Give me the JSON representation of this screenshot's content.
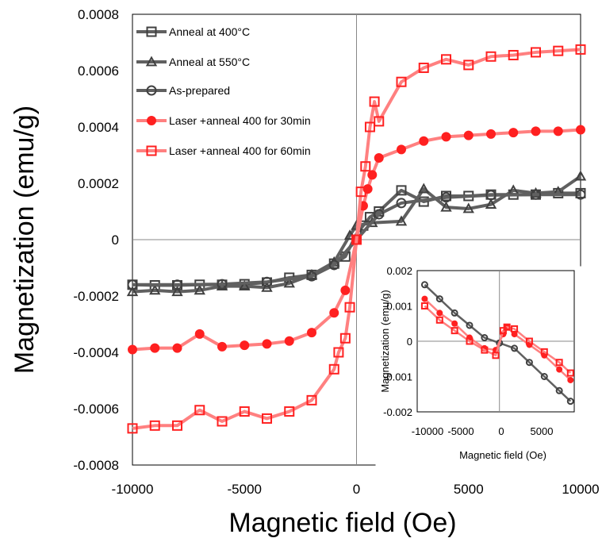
{
  "chart_data": [
    {
      "type": "line",
      "xlabel": "Magnetic field (Oe)",
      "ylabel": "Magnetization (emu/g)",
      "xlim": [
        -10000,
        10000
      ],
      "ylim": [
        -0.0008,
        0.0008
      ],
      "x_ticks": [
        "-10000",
        "-5000",
        "0",
        "5000",
        "10000"
      ],
      "y_ticks": [
        "-0.0008",
        "-0.0006",
        "-0.0004",
        "-0.0002",
        "0",
        "0.0002",
        "0.0004",
        "0.0006",
        "0.0008"
      ],
      "legend_position": "upper-left",
      "series": [
        {
          "name": "Anneal at 400°C",
          "color": "#404040",
          "marker": "square",
          "points": [
            [
              -10000,
              -0.00016
            ],
            [
              -9000,
              -0.000162
            ],
            [
              -8000,
              -0.000162
            ],
            [
              -7000,
              -0.00016
            ],
            [
              -6000,
              -0.00016
            ],
            [
              -5000,
              -0.000158
            ],
            [
              -4000,
              -0.000152
            ],
            [
              -3000,
              -0.000135
            ],
            [
              -2000,
              -0.000125
            ],
            [
              -1000,
              -8.5e-05
            ],
            [
              -500,
              -6e-05
            ],
            [
              0,
              2e-05
            ],
            [
              300,
              5e-05
            ],
            [
              600,
              8e-05
            ],
            [
              1000,
              0.0001
            ],
            [
              2000,
              0.000175
            ],
            [
              3000,
              0.000135
            ],
            [
              4000,
              0.000155
            ],
            [
              5000,
              0.000155
            ],
            [
              6000,
              0.00016
            ],
            [
              7000,
              0.00016
            ],
            [
              8000,
              0.00016
            ],
            [
              9000,
              0.000165
            ],
            [
              10000,
              0.000165
            ]
          ]
        },
        {
          "name": "Anneal at 550°C",
          "color": "#404040",
          "marker": "triangle",
          "points": [
            [
              -10000,
              -0.000185
            ],
            [
              -9000,
              -0.00018
            ],
            [
              -8000,
              -0.000185
            ],
            [
              -7000,
              -0.00018
            ],
            [
              -6000,
              -0.000165
            ],
            [
              -5000,
              -0.000165
            ],
            [
              -4000,
              -0.00017
            ],
            [
              -3000,
              -0.000155
            ],
            [
              -2000,
              -0.000125
            ],
            [
              -1000,
              -8e-05
            ],
            [
              -300,
              1.5e-05
            ],
            [
              0,
              5e-05
            ],
            [
              700,
              6e-05
            ],
            [
              2000,
              6.5e-05
            ],
            [
              3000,
              0.00018
            ],
            [
              4000,
              0.000115
            ],
            [
              5000,
              0.00011
            ],
            [
              6000,
              0.000125
            ],
            [
              7000,
              0.000175
            ],
            [
              8000,
              0.000165
            ],
            [
              9000,
              0.00017
            ],
            [
              10000,
              0.000225
            ]
          ]
        },
        {
          "name": "As-prepared",
          "color": "#404040",
          "marker": "circle",
          "points": [
            [
              -10000,
              -0.00016
            ],
            [
              -8000,
              -0.00016
            ],
            [
              -6000,
              -0.000158
            ],
            [
              -4000,
              -0.00015
            ],
            [
              -2000,
              -0.00013
            ],
            [
              -1000,
              -9e-05
            ],
            [
              0,
              0.0
            ],
            [
              1000,
              9e-05
            ],
            [
              2000,
              0.00013
            ],
            [
              4000,
              0.00015
            ],
            [
              6000,
              0.000158
            ],
            [
              8000,
              0.00016
            ],
            [
              10000,
              0.00016
            ]
          ]
        },
        {
          "name": "Laser +anneal 400 for 30min",
          "color": "#ff2020",
          "marker": "circle-filled",
          "points": [
            [
              -10000,
              -0.00039
            ],
            [
              -9000,
              -0.000385
            ],
            [
              -8000,
              -0.000385
            ],
            [
              -7000,
              -0.000335
            ],
            [
              -6000,
              -0.00038
            ],
            [
              -5000,
              -0.000375
            ],
            [
              -4000,
              -0.00037
            ],
            [
              -3000,
              -0.00036
            ],
            [
              -2000,
              -0.00033
            ],
            [
              -1000,
              -0.00026
            ],
            [
              -500,
              -0.00018
            ],
            [
              0,
              0.0
            ],
            [
              300,
              0.00012
            ],
            [
              500,
              0.00018
            ],
            [
              700,
              0.00023
            ],
            [
              1000,
              0.00029
            ],
            [
              2000,
              0.00032
            ],
            [
              3000,
              0.00035
            ],
            [
              4000,
              0.000365
            ],
            [
              5000,
              0.00037
            ],
            [
              6000,
              0.000375
            ],
            [
              7000,
              0.00038
            ],
            [
              8000,
              0.000385
            ],
            [
              9000,
              0.000385
            ],
            [
              10000,
              0.00039
            ]
          ]
        },
        {
          "name": "Laser +anneal 400 for 60min",
          "color": "#ff2020",
          "marker": "square",
          "points": [
            [
              -10000,
              -0.00067
            ],
            [
              -9000,
              -0.00066
            ],
            [
              -8000,
              -0.00066
            ],
            [
              -7000,
              -0.000605
            ],
            [
              -6000,
              -0.000645
            ],
            [
              -5000,
              -0.00061
            ],
            [
              -4000,
              -0.000635
            ],
            [
              -3000,
              -0.00061
            ],
            [
              -2000,
              -0.00057
            ],
            [
              -1000,
              -0.00046
            ],
            [
              -800,
              -0.0004
            ],
            [
              -500,
              -0.00035
            ],
            [
              -300,
              -0.00024
            ],
            [
              0,
              0.0
            ],
            [
              200,
              0.00017
            ],
            [
              400,
              0.00026
            ],
            [
              600,
              0.0004
            ],
            [
              800,
              0.00049
            ],
            [
              1000,
              0.00042
            ],
            [
              2000,
              0.00056
            ],
            [
              3000,
              0.00061
            ],
            [
              4000,
              0.00064
            ],
            [
              5000,
              0.00062
            ],
            [
              6000,
              0.00065
            ],
            [
              7000,
              0.000655
            ],
            [
              8000,
              0.000665
            ],
            [
              9000,
              0.00067
            ],
            [
              10000,
              0.000675
            ]
          ]
        }
      ]
    },
    {
      "type": "line",
      "xlabel": "Magnetic field (Oe)",
      "ylabel": "Magnetization (emu/g)",
      "xlim": [
        -11000,
        10000
      ],
      "ylim": [
        -0.002,
        0.002
      ],
      "x_ticks": [
        "-10000",
        "-5000",
        "0",
        "5000"
      ],
      "y_ticks": [
        "-0.002",
        "-0.001",
        "0",
        "0.001",
        "0.002"
      ],
      "series": [
        {
          "color": "#404040",
          "marker": "circle",
          "points": [
            [
              -10000,
              0.0016
            ],
            [
              -8000,
              0.0012
            ],
            [
              -6000,
              0.0008
            ],
            [
              -4000,
              0.00045
            ],
            [
              -2000,
              0.0001
            ],
            [
              0,
              -5e-05
            ],
            [
              2000,
              -0.0002
            ],
            [
              4000,
              -0.0006
            ],
            [
              6000,
              -0.001
            ],
            [
              8000,
              -0.0014
            ],
            [
              9500,
              -0.0017
            ]
          ]
        },
        {
          "color": "#ff2020",
          "marker": "circle-filled",
          "points": [
            [
              -10000,
              0.0012
            ],
            [
              -8000,
              0.0008
            ],
            [
              -6000,
              0.0005
            ],
            [
              -4000,
              0.0001
            ],
            [
              -2000,
              -0.0002
            ],
            [
              -500,
              -0.00025
            ],
            [
              500,
              0.0002
            ],
            [
              1000,
              0.0004
            ],
            [
              2000,
              0.0002
            ],
            [
              4000,
              -0.0001
            ],
            [
              6000,
              -0.0004
            ],
            [
              8000,
              -0.0008
            ],
            [
              9500,
              -0.0011
            ]
          ]
        },
        {
          "color": "#ff2020",
          "marker": "square",
          "points": [
            [
              -10000,
              0.001
            ],
            [
              -8000,
              0.0006
            ],
            [
              -6000,
              0.0003
            ],
            [
              -4000,
              0.0
            ],
            [
              -2000,
              -0.00025
            ],
            [
              -500,
              -0.0004
            ],
            [
              500,
              0.0003
            ],
            [
              1000,
              0.0004
            ],
            [
              2000,
              0.00035
            ],
            [
              4000,
              0.0
            ],
            [
              6000,
              -0.0003
            ],
            [
              8000,
              -0.0006
            ],
            [
              9500,
              -0.0009
            ]
          ]
        }
      ]
    }
  ]
}
